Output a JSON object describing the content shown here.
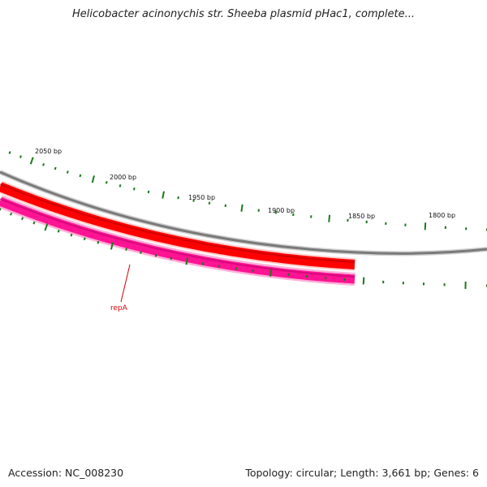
{
  "title": "Helicobacter acinonychis str. Sheeba plasmid pHac1, complete...",
  "accession": "Accession: NC_008230",
  "summary": "Topology: circular; Length: 3,661 bp; Genes: 6",
  "colors": {
    "backbone": "#8a8a8a",
    "forward_feature": "#ff0000",
    "reverse_feature": "#ff1493",
    "ticks": "#1a7a1a",
    "gene_label": "#d40000"
  },
  "ticks": [
    "2050 bp",
    "2000 bp",
    "1950 bp",
    "1900 bp",
    "1850 bp",
    "1800 bp"
  ],
  "genes": [
    {
      "label": "repA",
      "strand": "reverse"
    }
  ]
}
